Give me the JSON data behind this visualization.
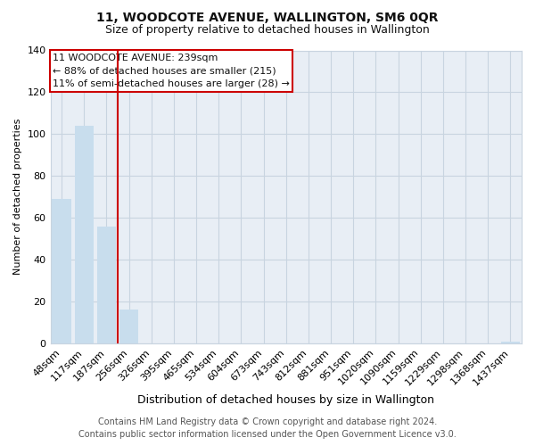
{
  "title": "11, WOODCOTE AVENUE, WALLINGTON, SM6 0QR",
  "subtitle": "Size of property relative to detached houses in Wallington",
  "xlabel": "Distribution of detached houses by size in Wallington",
  "ylabel": "Number of detached properties",
  "categories": [
    "48sqm",
    "117sqm",
    "187sqm",
    "256sqm",
    "326sqm",
    "395sqm",
    "465sqm",
    "534sqm",
    "604sqm",
    "673sqm",
    "743sqm",
    "812sqm",
    "881sqm",
    "951sqm",
    "1020sqm",
    "1090sqm",
    "1159sqm",
    "1229sqm",
    "1298sqm",
    "1368sqm",
    "1437sqm"
  ],
  "values": [
    69,
    104,
    56,
    16,
    0,
    0,
    0,
    0,
    0,
    0,
    0,
    0,
    0,
    0,
    0,
    0,
    0,
    0,
    0,
    0,
    1
  ],
  "bar_color": "#c8dded",
  "vline_color": "#cc0000",
  "vline_pos": 2.5,
  "ylim": [
    0,
    140
  ],
  "yticks": [
    0,
    20,
    40,
    60,
    80,
    100,
    120,
    140
  ],
  "annotation_title": "11 WOODCOTE AVENUE: 239sqm",
  "annotation_line1": "← 88% of detached houses are smaller (215)",
  "annotation_line2": "11% of semi-detached houses are larger (28) →",
  "annotation_box_facecolor": "#ffffff",
  "annotation_box_edgecolor": "#cc0000",
  "footer_line1": "Contains HM Land Registry data © Crown copyright and database right 2024.",
  "footer_line2": "Contains public sector information licensed under the Open Government Licence v3.0.",
  "fig_background": "#ffffff",
  "plot_background": "#e8eef5",
  "grid_color": "#c8d4e0",
  "title_fontsize": 10,
  "subtitle_fontsize": 9,
  "xlabel_fontsize": 9,
  "ylabel_fontsize": 8,
  "tick_fontsize": 8,
  "footer_fontsize": 7,
  "annotation_fontsize": 8
}
